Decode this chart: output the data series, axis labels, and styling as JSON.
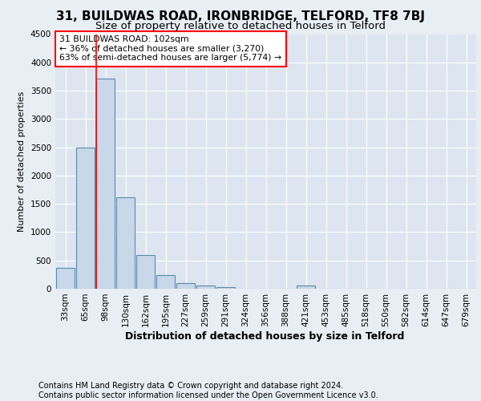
{
  "title1": "31, BUILDWAS ROAD, IRONBRIDGE, TELFORD, TF8 7BJ",
  "title2": "Size of property relative to detached houses in Telford",
  "xlabel": "Distribution of detached houses by size in Telford",
  "ylabel": "Number of detached properties",
  "footer": "Contains HM Land Registry data © Crown copyright and database right 2024.\nContains public sector information licensed under the Open Government Licence v3.0.",
  "categories": [
    "33sqm",
    "65sqm",
    "98sqm",
    "130sqm",
    "162sqm",
    "195sqm",
    "227sqm",
    "259sqm",
    "291sqm",
    "324sqm",
    "356sqm",
    "388sqm",
    "421sqm",
    "453sqm",
    "485sqm",
    "518sqm",
    "550sqm",
    "582sqm",
    "614sqm",
    "647sqm",
    "679sqm"
  ],
  "values": [
    370,
    2500,
    3720,
    1610,
    590,
    240,
    105,
    60,
    30,
    5,
    5,
    5,
    55,
    5,
    0,
    0,
    0,
    0,
    0,
    0,
    0
  ],
  "bar_color": "#c8d8e8",
  "bar_edge_color": "#5a8ab0",
  "bar_edge_width": 0.8,
  "red_line_bar_index": 2,
  "annotation_text": "31 BUILDWAS ROAD: 102sqm\n← 36% of detached houses are smaller (3,270)\n63% of semi-detached houses are larger (5,774) →",
  "annotation_box_color": "white",
  "annotation_border_color": "red",
  "ylim": [
    0,
    4500
  ],
  "yticks": [
    0,
    500,
    1000,
    1500,
    2000,
    2500,
    3000,
    3500,
    4000,
    4500
  ],
  "background_color": "#e8eef4",
  "plot_bg_color": "#dde6f0",
  "grid_color": "white",
  "red_line_color": "red",
  "title1_fontsize": 11,
  "title2_fontsize": 9.5,
  "xlabel_fontsize": 9,
  "ylabel_fontsize": 8,
  "tick_fontsize": 7.5,
  "footer_fontsize": 7
}
